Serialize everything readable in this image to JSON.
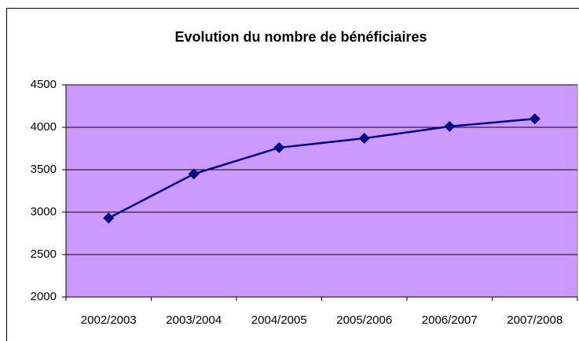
{
  "chart_data": {
    "type": "line",
    "title": "Evolution du nombre de bénéficiaires",
    "categories": [
      "2002/2003",
      "2003/2004",
      "2004/2005",
      "2005/2006",
      "2006/2007",
      "2007/2008"
    ],
    "values": [
      2930,
      3450,
      3760,
      3870,
      4010,
      4100
    ],
    "color": "#000080",
    "background": "#cc99ff",
    "ylim": [
      2000,
      4500
    ],
    "yticks": [
      2000,
      2500,
      3000,
      3500,
      4000,
      4500
    ],
    "grid": true
  }
}
